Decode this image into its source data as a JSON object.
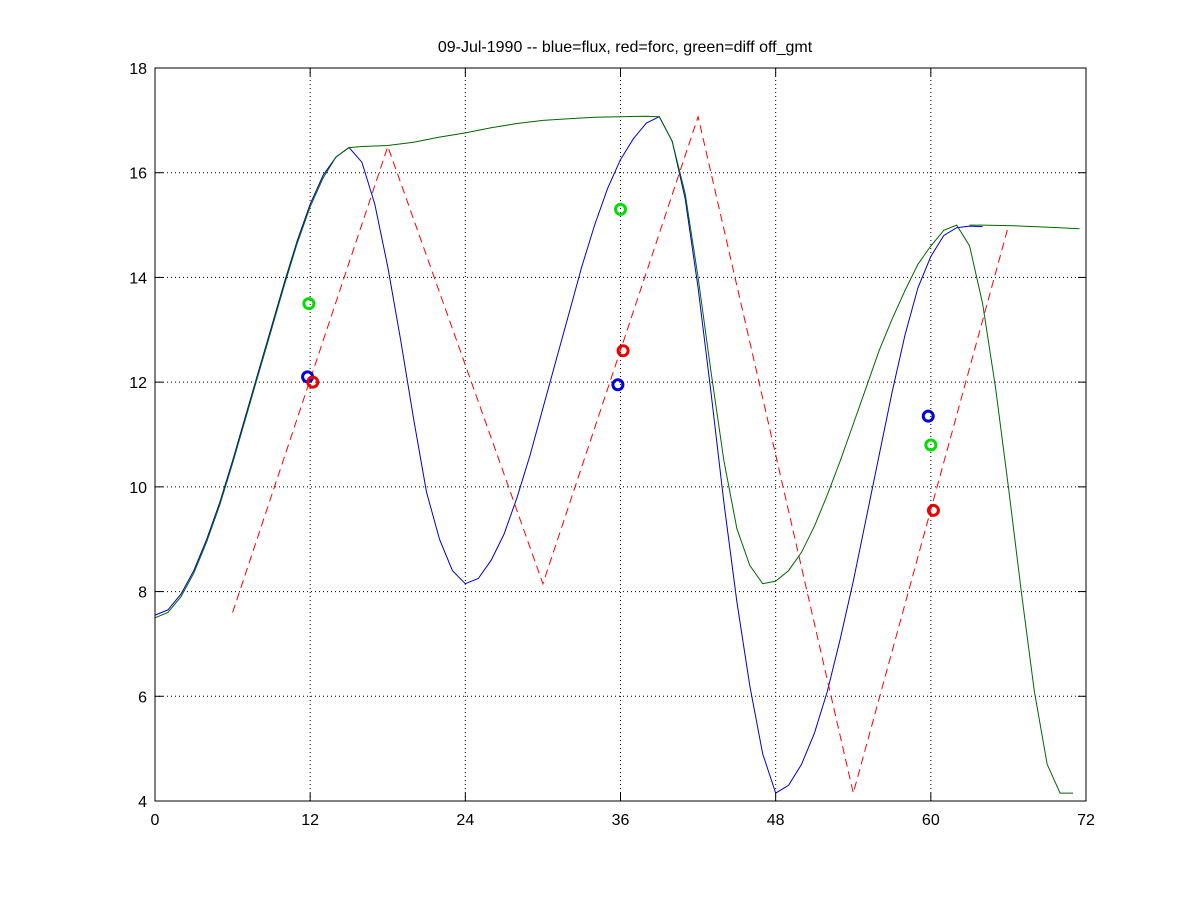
{
  "chart_data": {
    "type": "line",
    "title": "09-Jul-1990 -- blue=flux, red=forc, green=diff off_gmt",
    "xlabel": "",
    "ylabel": "",
    "xlim": [
      0,
      72
    ],
    "ylim": [
      4,
      18
    ],
    "xticks": [
      0,
      12,
      24,
      36,
      48,
      60,
      72
    ],
    "yticks": [
      4,
      6,
      8,
      10,
      12,
      14,
      16,
      18
    ],
    "grid": true,
    "grid_style": "dotted",
    "colors": {
      "flux": "#0000cc",
      "forc": "#ff0000",
      "diff": "#006600",
      "diff_marker": "#00dd00",
      "flux_marker": "#0000dd",
      "forc_marker": "#ee0000"
    },
    "series": [
      {
        "name": "flux",
        "color": "#0000cc",
        "style": "solid",
        "x": [
          0,
          1,
          2,
          3,
          4,
          5,
          6,
          7,
          8,
          9,
          10,
          11,
          12,
          13,
          14,
          15,
          16,
          17,
          18,
          19,
          20,
          21,
          22,
          23,
          24,
          25,
          26,
          27,
          28,
          29,
          30,
          31,
          32,
          33,
          34,
          35,
          36,
          37,
          38,
          39,
          40,
          41,
          42,
          43,
          44,
          45,
          46,
          47,
          48,
          49,
          50,
          51,
          52,
          53,
          54,
          55,
          56,
          57,
          58,
          59,
          60,
          61,
          62,
          63,
          64
        ],
        "y": [
          7.55,
          7.65,
          7.95,
          8.4,
          9.0,
          9.7,
          10.5,
          11.35,
          12.2,
          13.05,
          13.9,
          14.7,
          15.4,
          15.95,
          16.3,
          16.48,
          16.2,
          15.4,
          14.2,
          12.8,
          11.3,
          9.9,
          9.0,
          8.4,
          8.15,
          8.25,
          8.6,
          9.1,
          9.8,
          10.6,
          11.5,
          12.4,
          13.3,
          14.2,
          15.0,
          15.7,
          16.25,
          16.65,
          16.95,
          17.07,
          16.6,
          15.5,
          13.8,
          11.8,
          9.7,
          7.8,
          6.2,
          4.9,
          4.15,
          4.3,
          4.7,
          5.3,
          6.1,
          7.1,
          8.2,
          9.4,
          10.6,
          11.8,
          12.9,
          13.8,
          14.4,
          14.8,
          14.95,
          14.98,
          14.97
        ]
      },
      {
        "name": "forc",
        "color": "#ff0000",
        "style": "dashed",
        "x": [
          6,
          18,
          30,
          42,
          54,
          66
        ],
        "y": [
          7.6,
          16.5,
          8.15,
          17.07,
          4.15,
          14.98
        ]
      },
      {
        "name": "diff",
        "color": "#006600",
        "style": "solid",
        "x": [
          0,
          1,
          2,
          3,
          4,
          5,
          6,
          7,
          8,
          9,
          10,
          11,
          12,
          13,
          14,
          15,
          16,
          18,
          20,
          22,
          24,
          26,
          28,
          30,
          32,
          34,
          36,
          38,
          39,
          40,
          41,
          42,
          43,
          44,
          45,
          46,
          47,
          48,
          49,
          50,
          51,
          52,
          53,
          54,
          55,
          56,
          57,
          58,
          59,
          60,
          61,
          62,
          63,
          64,
          65,
          66,
          67,
          68,
          69,
          70,
          71
        ],
        "y": [
          7.5,
          7.6,
          7.9,
          8.35,
          8.95,
          9.65,
          10.45,
          11.3,
          12.15,
          13.0,
          13.85,
          14.65,
          15.35,
          15.9,
          16.3,
          16.48,
          16.5,
          16.52,
          16.58,
          16.68,
          16.76,
          16.86,
          16.94,
          17.0,
          17.03,
          17.06,
          17.07,
          17.08,
          17.07,
          16.6,
          15.6,
          14.0,
          12.2,
          10.5,
          9.2,
          8.5,
          8.15,
          8.2,
          8.4,
          8.75,
          9.25,
          9.85,
          10.5,
          11.2,
          11.9,
          12.6,
          13.2,
          13.75,
          14.25,
          14.6,
          14.9,
          15.0,
          14.6,
          13.5,
          11.9,
          10.0,
          8.0,
          6.1,
          4.7,
          4.15,
          4.15
        ]
      },
      {
        "name": "diff-tail",
        "color": "#006600",
        "style": "solid",
        "x": [
          63,
          64,
          66,
          68,
          70,
          71.5
        ],
        "y": [
          15.0,
          15.0,
          14.99,
          14.97,
          14.95,
          14.93
        ]
      }
    ],
    "markers": [
      {
        "series": "flux",
        "color": "#0000dd",
        "x": 11.8,
        "y": 12.1
      },
      {
        "series": "forc",
        "color": "#ee0000",
        "x": 12.2,
        "y": 12.0
      },
      {
        "series": "diff",
        "color": "#00dd00",
        "x": 11.9,
        "y": 13.5
      },
      {
        "series": "flux",
        "color": "#0000dd",
        "x": 35.8,
        "y": 11.95
      },
      {
        "series": "forc",
        "color": "#ee0000",
        "x": 36.2,
        "y": 12.6
      },
      {
        "series": "diff",
        "color": "#00dd00",
        "x": 36.0,
        "y": 15.3
      },
      {
        "series": "flux",
        "color": "#0000dd",
        "x": 59.8,
        "y": 11.35
      },
      {
        "series": "forc",
        "color": "#ee0000",
        "x": 60.2,
        "y": 9.55
      },
      {
        "series": "diff",
        "color": "#00dd00",
        "x": 60.0,
        "y": 10.8
      }
    ]
  }
}
